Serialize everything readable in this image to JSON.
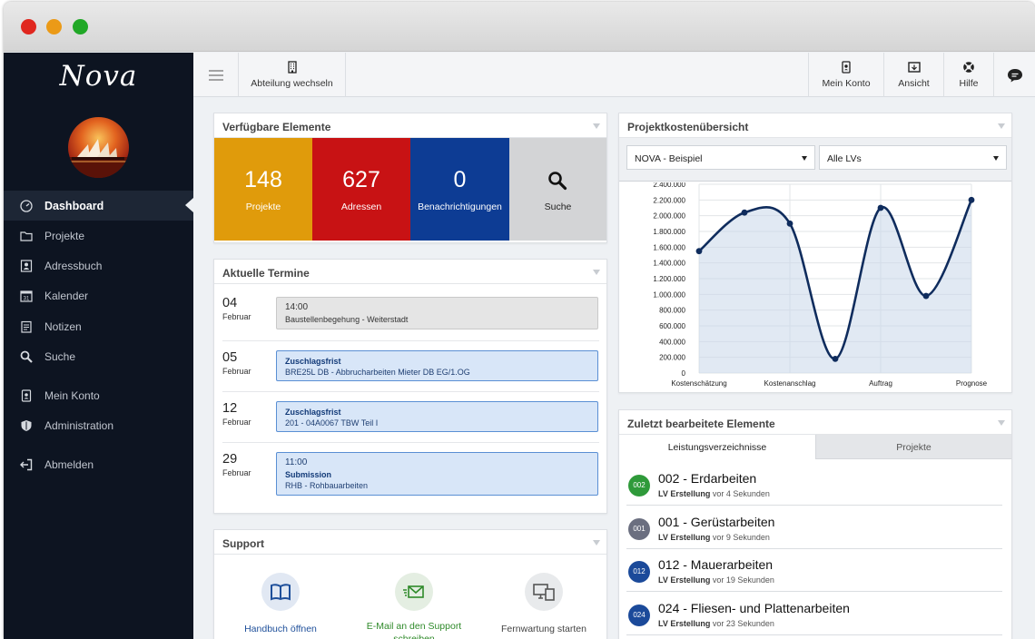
{
  "app": {
    "logo": "Nova"
  },
  "colors": {
    "sidebar_bg": "#0d1421",
    "projects_tile": "#e09b0b",
    "addresses_tile": "#c81214",
    "notifications_tile": "#0d3c94",
    "search_tile": "#d3d4d6",
    "chart_line": "#0f2c5d",
    "badge_green": "#2f9a3a",
    "badge_gray": "#6b6f80",
    "badge_blue": "#1b4a9a"
  },
  "sidebar": {
    "items": [
      {
        "label": "Dashboard",
        "icon": "gauge-icon"
      },
      {
        "label": "Projekte",
        "icon": "folder-icon"
      },
      {
        "label": "Adressbuch",
        "icon": "addressbook-icon"
      },
      {
        "label": "Kalender",
        "icon": "calendar-icon"
      },
      {
        "label": "Notizen",
        "icon": "note-icon"
      },
      {
        "label": "Suche",
        "icon": "search-icon"
      },
      {
        "label": "Mein Konto",
        "icon": "account-icon"
      },
      {
        "label": "Administration",
        "icon": "shield-icon"
      },
      {
        "label": "Abmelden",
        "icon": "logout-icon"
      }
    ],
    "calendar_icon_day": "31"
  },
  "topbar": {
    "switch_department": "Abteilung wechseln",
    "account": "Mein Konto",
    "view": "Ansicht",
    "help": "Hilfe"
  },
  "available": {
    "title": "Verfügbare Elemente",
    "tiles": [
      {
        "value": "148",
        "label": "Projekte"
      },
      {
        "value": "627",
        "label": "Adressen"
      },
      {
        "value": "0",
        "label": "Benachrichtigungen"
      },
      {
        "label": "Suche"
      }
    ]
  },
  "appointments": {
    "title": "Aktuelle Termine",
    "items": [
      {
        "day": "04",
        "month": "Februar",
        "time": "14:00",
        "heading": "",
        "text": "Baustellenbegehung - Weiterstadt"
      },
      {
        "day": "05",
        "month": "Februar",
        "time": "",
        "heading": "Zuschlagsfrist",
        "text": "BRE25L DB - Abbrucharbeiten Mieter DB EG/1.OG"
      },
      {
        "day": "12",
        "month": "Februar",
        "time": "",
        "heading": "Zuschlagsfrist",
        "text": "201 - 04A0067 TBW Teil I"
      },
      {
        "day": "29",
        "month": "Februar",
        "time": "11:00",
        "heading": "Submission",
        "text": "RHB - Rohbauarbeiten"
      }
    ]
  },
  "support": {
    "title": "Support",
    "items": [
      {
        "label": "Handbuch öffnen",
        "icon": "book-icon"
      },
      {
        "label": "E-Mail an den Support schreiben",
        "icon": "mail-icon"
      },
      {
        "label": "Fernwartung starten",
        "icon": "remote-desktop-icon"
      }
    ]
  },
  "costs": {
    "title": "Projektkostenübersicht",
    "project_select": "NOVA - Beispiel",
    "lv_select": "Alle LVs"
  },
  "chart_data": {
    "type": "line",
    "categories": [
      "Kostenschätzung",
      "Kostenanschlag",
      "Auftrag",
      "Prognose"
    ],
    "x": [
      0,
      0.5,
      1,
      1.5,
      2,
      2.5,
      3
    ],
    "values": [
      1550000,
      2040000,
      1900000,
      180000,
      2100000,
      980000,
      2200000
    ],
    "yticks": [
      "0",
      "200.000",
      "400.000",
      "600.000",
      "800.000",
      "1.000.000",
      "1.200.000",
      "1.400.000",
      "1.600.000",
      "1.800.000",
      "2.000.000",
      "2.200.000",
      "2.400.000"
    ],
    "ylim": [
      0,
      2400000
    ],
    "grid": true,
    "fill": true
  },
  "recent": {
    "title": "Zuletzt bearbeitete Elemente",
    "tabs": [
      "Leistungsverzeichnisse",
      "Projekte"
    ],
    "items": [
      {
        "badge": "002",
        "title": "002 - Erdarbeiten",
        "action": "LV Erstellung",
        "time": "vor 4 Sekunden",
        "color": "#2f9a3a"
      },
      {
        "badge": "001",
        "title": "001 - Gerüstarbeiten",
        "action": "LV Erstellung",
        "time": "vor 9 Sekunden",
        "color": "#6b6f80"
      },
      {
        "badge": "012",
        "title": "012 - Mauerarbeiten",
        "action": "LV Erstellung",
        "time": "vor 19 Sekunden",
        "color": "#1b4a9a"
      },
      {
        "badge": "024",
        "title": "024 - Fliesen- und Plattenarbeiten",
        "action": "LV Erstellung",
        "time": "vor 23 Sekunden",
        "color": "#1b4a9a"
      }
    ]
  }
}
